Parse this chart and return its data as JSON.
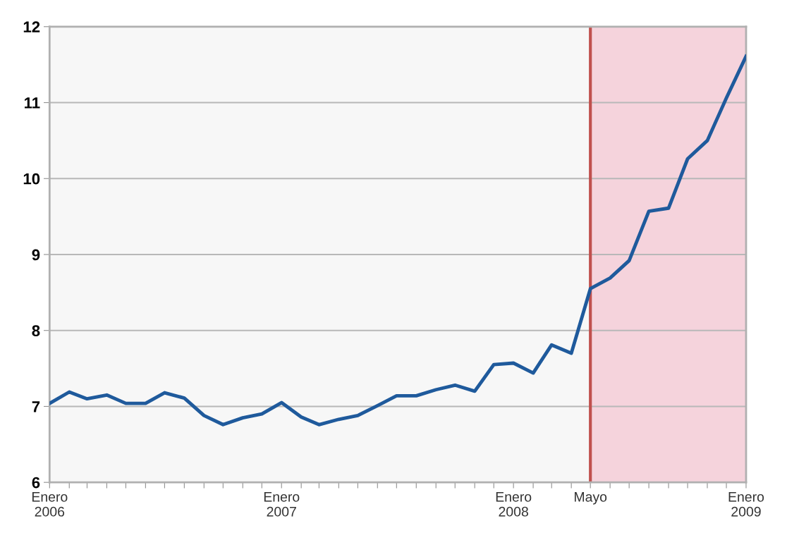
{
  "chart_data": {
    "type": "line",
    "x": [
      "2006-01",
      "2006-02",
      "2006-03",
      "2006-04",
      "2006-05",
      "2006-06",
      "2006-07",
      "2006-08",
      "2006-09",
      "2006-10",
      "2006-11",
      "2006-12",
      "2007-01",
      "2007-02",
      "2007-03",
      "2007-04",
      "2007-05",
      "2007-06",
      "2007-07",
      "2007-08",
      "2007-09",
      "2007-10",
      "2007-11",
      "2007-12",
      "2008-01",
      "2008-02",
      "2008-03",
      "2008-04",
      "2008-05",
      "2008-06",
      "2008-07",
      "2008-08",
      "2008-09",
      "2008-10",
      "2008-11",
      "2008-12",
      "2009-01"
    ],
    "series": [
      {
        "color": "#1f5a9c",
        "values": [
          7.04,
          7.19,
          7.1,
          7.15,
          7.04,
          7.04,
          7.18,
          7.11,
          6.88,
          6.76,
          6.85,
          6.9,
          7.05,
          6.86,
          6.76,
          6.83,
          6.88,
          7.01,
          7.14,
          7.14,
          7.22,
          7.28,
          7.2,
          7.55,
          7.57,
          7.44,
          7.81,
          7.7,
          8.55,
          8.69,
          8.92,
          9.57,
          9.61,
          10.26,
          10.5,
          11.06,
          11.61
        ]
      }
    ],
    "xlim": [
      "2006-01",
      "2009-01"
    ],
    "xticks": [
      {
        "value": "2006-01",
        "label": "Enero\n2006"
      },
      {
        "value": "2006-02",
        "label": null
      },
      {
        "value": "2006-03",
        "label": null
      },
      {
        "value": "2006-04",
        "label": null
      },
      {
        "value": "2006-05",
        "label": null
      },
      {
        "value": "2006-06",
        "label": null
      },
      {
        "value": "2006-07",
        "label": null
      },
      {
        "value": "2006-08",
        "label": null
      },
      {
        "value": "2006-09",
        "label": null
      },
      {
        "value": "2006-10",
        "label": null
      },
      {
        "value": "2006-11",
        "label": null
      },
      {
        "value": "2006-12",
        "label": null
      },
      {
        "value": "2007-01",
        "label": "Enero\n2007"
      },
      {
        "value": "2007-02",
        "label": null
      },
      {
        "value": "2007-03",
        "label": null
      },
      {
        "value": "2007-04",
        "label": null
      },
      {
        "value": "2007-05",
        "label": null
      },
      {
        "value": "2007-06",
        "label": null
      },
      {
        "value": "2007-07",
        "label": null
      },
      {
        "value": "2007-08",
        "label": null
      },
      {
        "value": "2007-09",
        "label": null
      },
      {
        "value": "2007-10",
        "label": null
      },
      {
        "value": "2007-11",
        "label": null
      },
      {
        "value": "2007-12",
        "label": null
      },
      {
        "value": "2008-01",
        "label": "Enero\n2008"
      },
      {
        "value": "2008-02",
        "label": null
      },
      {
        "value": "2008-03",
        "label": null
      },
      {
        "value": "2008-04",
        "label": null
      },
      {
        "value": "2008-05",
        "label": "Mayo"
      },
      {
        "value": "2008-06",
        "label": null
      },
      {
        "value": "2008-07",
        "label": null
      },
      {
        "value": "2008-08",
        "label": null
      },
      {
        "value": "2008-09",
        "label": null
      },
      {
        "value": "2008-10",
        "label": null
      },
      {
        "value": "2008-11",
        "label": null
      },
      {
        "value": "2008-12",
        "label": null
      },
      {
        "value": "2009-01",
        "label": "Enero\n2009"
      }
    ],
    "ylim": [
      6,
      12
    ],
    "yticks": [
      6,
      7,
      8,
      9,
      10,
      11,
      12
    ],
    "grid": "y",
    "line_style": "solid",
    "ref_lines": [
      {
        "axis": "x",
        "value": "2008-05",
        "color": "#c0504d"
      }
    ],
    "bands": [
      {
        "axis": "x",
        "from": "2008-05",
        "to": "2009-01",
        "color": "#f5d3dc"
      }
    ]
  }
}
